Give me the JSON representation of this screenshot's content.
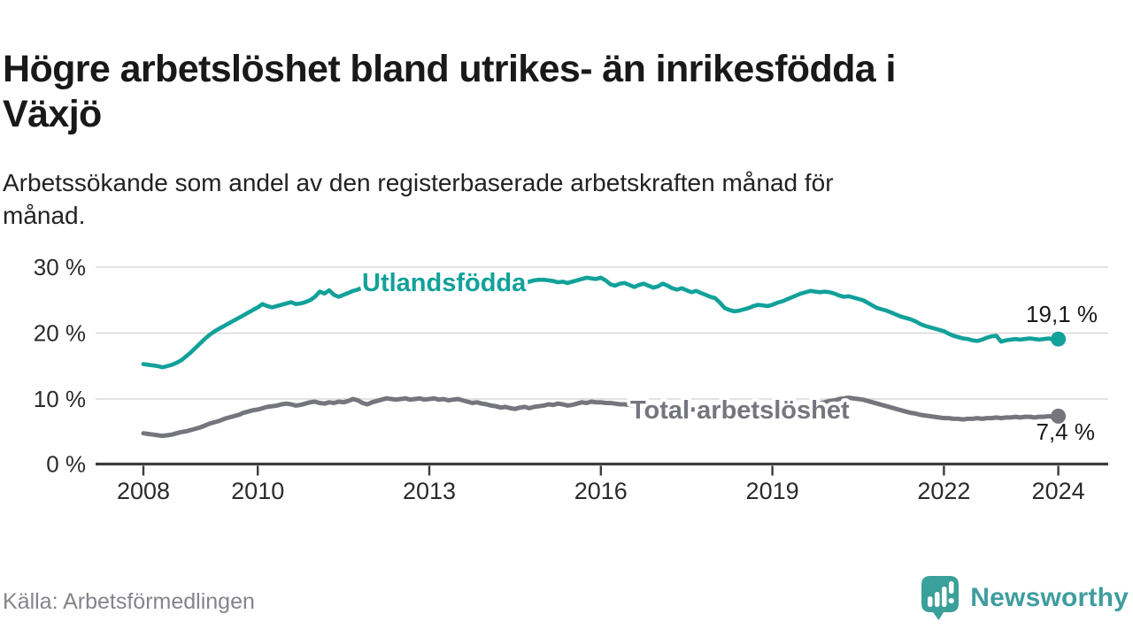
{
  "header": {
    "title_lines": [
      "Högre arbetslöshet bland utrikes- än inrikesfödda i",
      "Växjö"
    ],
    "subtitle_lines": [
      "Arbetssökande som andel av den registerbaserade arbetskraften månad för",
      "månad."
    ]
  },
  "footer": {
    "source": "Källa: Arbetsförmedlingen",
    "brand_name": "Newsworthy",
    "brand_icon": "newsworthy-speech-bubble-bar-chart-icon"
  },
  "colors": {
    "foreign_born_line": "#12a19a",
    "total_line": "#75757e",
    "grid": "#d8d8d8",
    "axis": "#3c3c3c",
    "tick_text": "#2b2b2b",
    "value_text": "#1a1a1a",
    "halo": "#ffffff",
    "brand": "#3f9d9e",
    "source_text": "#84848c"
  },
  "chart_data": {
    "type": "line",
    "x_unit": "month",
    "x_start_year": 2008,
    "x_end_year": 2024,
    "x_tick_labels": [
      "2008",
      "2010",
      "2013",
      "2016",
      "2019",
      "2022",
      "2024"
    ],
    "x_tick_years": [
      2008,
      2010,
      2013,
      2016,
      2019,
      2022,
      2024
    ],
    "y_ticks": [
      0,
      10,
      20,
      30
    ],
    "y_tick_labels": [
      "0 %",
      "10 %",
      "20 %",
      "30 %"
    ],
    "ylim": [
      0,
      31.5
    ],
    "grid": "horizontal-only",
    "legend": "direct-labels-on-lines",
    "series": [
      {
        "name": "Utlandsfödda",
        "end_value_label": "19,1 %",
        "end_value": 19.1,
        "color": "#12a19a",
        "values": [
          15.3,
          15.2,
          15.1,
          15.0,
          14.8,
          15.0,
          15.2,
          15.5,
          15.9,
          16.5,
          17.1,
          17.8,
          18.5,
          19.2,
          19.8,
          20.3,
          20.7,
          21.1,
          21.5,
          21.9,
          22.3,
          22.7,
          23.1,
          23.5,
          23.9,
          24.4,
          24.1,
          23.9,
          24.1,
          24.3,
          24.5,
          24.7,
          24.4,
          24.5,
          24.7,
          25.0,
          25.5,
          26.3,
          26.0,
          26.5,
          25.8,
          25.5,
          25.8,
          26.1,
          26.4,
          26.6,
          26.9,
          26.7,
          27.0,
          27.2,
          27.4,
          27.3,
          27.5,
          27.7,
          28.0,
          28.3,
          28.5,
          28.3,
          28.0,
          27.7,
          27.6,
          27.7,
          27.5,
          27.6,
          27.4,
          27.3,
          27.4,
          27.5,
          27.6,
          27.5,
          27.7,
          27.6,
          27.6,
          27.5,
          27.3,
          27.4,
          27.6,
          27.5,
          27.7,
          27.8,
          27.6,
          27.8,
          28.0,
          28.1,
          28.1,
          28.0,
          27.9,
          27.7,
          27.8,
          27.6,
          27.8,
          28.0,
          28.2,
          28.4,
          28.3,
          28.2,
          28.4,
          28.0,
          27.4,
          27.2,
          27.5,
          27.6,
          27.3,
          27.0,
          27.3,
          27.5,
          27.2,
          26.9,
          27.1,
          27.5,
          27.2,
          26.8,
          26.6,
          26.8,
          26.5,
          26.2,
          26.4,
          26.1,
          25.8,
          25.5,
          25.3,
          24.6,
          23.8,
          23.5,
          23.3,
          23.4,
          23.6,
          23.8,
          24.1,
          24.3,
          24.2,
          24.1,
          24.3,
          24.6,
          24.8,
          25.1,
          25.4,
          25.7,
          26.0,
          26.2,
          26.4,
          26.3,
          26.2,
          26.3,
          26.2,
          26.0,
          25.7,
          25.5,
          25.6,
          25.4,
          25.2,
          25.0,
          24.6,
          24.2,
          23.8,
          23.6,
          23.4,
          23.1,
          22.8,
          22.5,
          22.3,
          22.1,
          21.8,
          21.4,
          21.1,
          20.9,
          20.7,
          20.5,
          20.3,
          19.9,
          19.6,
          19.4,
          19.2,
          19.1,
          18.9,
          18.8,
          19.0,
          19.3,
          19.5,
          19.6,
          18.7,
          18.9,
          19.0,
          19.1,
          19.0,
          19.1,
          19.2,
          19.1,
          19.0,
          19.1,
          19.2,
          19.0,
          19.1
        ]
      },
      {
        "name": "Total arbetslöshet",
        "end_value_label": "7,4 %",
        "end_value": 7.4,
        "color": "#75757e",
        "values": [
          4.8,
          4.7,
          4.6,
          4.5,
          4.4,
          4.5,
          4.6,
          4.8,
          5.0,
          5.1,
          5.3,
          5.5,
          5.7,
          6.0,
          6.3,
          6.5,
          6.7,
          7.0,
          7.2,
          7.4,
          7.6,
          7.9,
          8.1,
          8.3,
          8.4,
          8.6,
          8.8,
          8.9,
          9.0,
          9.2,
          9.3,
          9.2,
          9.0,
          9.1,
          9.3,
          9.5,
          9.6,
          9.4,
          9.3,
          9.5,
          9.4,
          9.6,
          9.5,
          9.7,
          10.0,
          9.8,
          9.4,
          9.2,
          9.5,
          9.7,
          9.9,
          10.1,
          10.0,
          9.9,
          10.0,
          10.1,
          9.9,
          10.0,
          10.1,
          9.9,
          10.0,
          10.1,
          9.9,
          10.0,
          9.8,
          9.9,
          10.0,
          9.8,
          9.6,
          9.4,
          9.5,
          9.3,
          9.2,
          9.0,
          8.9,
          8.7,
          8.8,
          8.6,
          8.5,
          8.7,
          8.8,
          8.6,
          8.8,
          8.9,
          9.0,
          9.2,
          9.1,
          9.3,
          9.2,
          9.0,
          9.1,
          9.3,
          9.5,
          9.4,
          9.6,
          9.5,
          9.5,
          9.4,
          9.4,
          9.3,
          9.2,
          9.2,
          9.1,
          9.0,
          9.0,
          8.9,
          8.9,
          8.8,
          8.8,
          8.7,
          8.7,
          8.6,
          8.6,
          8.5,
          8.5,
          8.4,
          8.4,
          8.5,
          8.5,
          8.4,
          8.4,
          8.3,
          8.3,
          8.2,
          8.2,
          8.3,
          8.3,
          8.4,
          8.4,
          8.5,
          8.5,
          8.6,
          8.6,
          8.7,
          8.7,
          8.8,
          8.8,
          8.9,
          9.0,
          9.1,
          9.2,
          9.3,
          9.4,
          9.5,
          9.7,
          9.8,
          10.0,
          10.1,
          10.2,
          10.1,
          10.0,
          9.9,
          9.7,
          9.5,
          9.3,
          9.1,
          8.9,
          8.7,
          8.5,
          8.3,
          8.1,
          7.9,
          7.8,
          7.6,
          7.5,
          7.4,
          7.3,
          7.2,
          7.1,
          7.1,
          7.0,
          7.0,
          6.9,
          7.0,
          7.0,
          7.1,
          7.0,
          7.1,
          7.1,
          7.2,
          7.1,
          7.2,
          7.2,
          7.3,
          7.2,
          7.3,
          7.3,
          7.2,
          7.3,
          7.3,
          7.4,
          7.3,
          7.4
        ]
      }
    ]
  }
}
